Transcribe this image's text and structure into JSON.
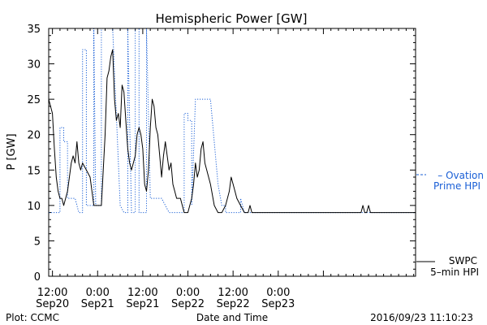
{
  "chart_data": {
    "type": "line",
    "title": "Hemispheric Power [GW]",
    "ylabel": "P [GW]",
    "xlabel": "Date and Time",
    "ylim": [
      0,
      35
    ],
    "xlim": [
      -1.0,
      96.5
    ],
    "y_ticks": [
      0,
      5,
      10,
      15,
      20,
      25,
      30,
      35
    ],
    "x_tick_hours": [
      0,
      12,
      24,
      36,
      48,
      60,
      72
    ],
    "x_tick_labels": [
      {
        "time": "12:00",
        "date": "Sep20"
      },
      {
        "time": "0:00",
        "date": "Sep21"
      },
      {
        "time": "12:00",
        "date": "Sep21"
      },
      {
        "time": "0:00",
        "date": "Sep22"
      },
      {
        "time": "12:00",
        "date": "Sep22"
      },
      {
        "time": "0:00",
        "date": "Sep23"
      }
    ],
    "legend": [
      {
        "line1": "– Ovation",
        "line2": "Prime HPI",
        "color": "#1a5fd6",
        "style": "dashed"
      },
      {
        "line1": "SWPC",
        "line2": "5–min HPI",
        "color": "#000000",
        "style": "solid"
      }
    ],
    "series": [
      {
        "color": "#1a5fd6",
        "style": "dotted",
        "points": [
          [
            -1,
            9
          ],
          [
            2,
            9
          ],
          [
            2,
            21
          ],
          [
            3,
            21
          ],
          [
            3,
            19
          ],
          [
            4,
            19
          ],
          [
            4,
            11
          ],
          [
            6,
            11
          ],
          [
            6,
            11
          ],
          [
            7,
            9
          ],
          [
            8,
            9
          ],
          [
            8,
            32
          ],
          [
            9,
            32
          ],
          [
            9,
            10
          ],
          [
            11,
            10
          ],
          [
            11,
            35
          ],
          [
            11.5,
            10
          ],
          [
            13,
            10
          ],
          [
            13,
            35
          ],
          [
            16,
            35
          ],
          [
            16,
            35
          ],
          [
            18,
            10
          ],
          [
            19,
            9
          ],
          [
            20,
            9
          ],
          [
            20,
            35
          ],
          [
            21,
            9
          ],
          [
            22,
            9
          ],
          [
            22,
            35
          ],
          [
            23,
            35
          ],
          [
            23,
            9
          ],
          [
            25,
            9
          ],
          [
            25,
            35
          ],
          [
            26,
            11
          ],
          [
            29,
            11
          ],
          [
            31,
            9
          ],
          [
            35,
            9
          ],
          [
            35,
            23
          ],
          [
            36,
            23
          ],
          [
            36,
            22
          ],
          [
            37,
            22
          ],
          [
            37,
            10
          ],
          [
            38,
            25
          ],
          [
            42,
            25
          ],
          [
            44,
            13
          ],
          [
            45,
            10
          ],
          [
            46,
            10
          ],
          [
            46,
            9
          ],
          [
            50,
            9
          ],
          [
            50,
            11
          ],
          [
            51,
            9
          ],
          [
            96.5,
            9
          ]
        ]
      },
      {
        "color": "#000000",
        "style": "solid",
        "points": [
          [
            -1,
            25
          ],
          [
            0,
            23
          ],
          [
            0.5,
            18
          ],
          [
            1,
            14
          ],
          [
            1.5,
            12
          ],
          [
            2,
            11
          ],
          [
            2.5,
            11
          ],
          [
            3,
            10
          ],
          [
            4,
            12
          ],
          [
            5,
            16
          ],
          [
            5.5,
            17
          ],
          [
            6,
            16
          ],
          [
            6.5,
            19
          ],
          [
            7,
            16
          ],
          [
            7.5,
            15
          ],
          [
            8,
            16
          ],
          [
            9,
            15
          ],
          [
            10,
            14
          ],
          [
            10.5,
            12
          ],
          [
            11,
            10
          ],
          [
            12,
            10
          ],
          [
            13,
            10
          ],
          [
            14,
            20
          ],
          [
            14.5,
            28
          ],
          [
            15,
            29
          ],
          [
            15.5,
            31
          ],
          [
            16,
            32
          ],
          [
            16.5,
            25
          ],
          [
            17,
            22
          ],
          [
            17.5,
            23
          ],
          [
            18,
            21
          ],
          [
            18.5,
            27
          ],
          [
            19,
            26
          ],
          [
            19.5,
            22
          ],
          [
            20,
            18
          ],
          [
            20.5,
            16
          ],
          [
            21,
            15
          ],
          [
            22,
            17
          ],
          [
            22.5,
            20
          ],
          [
            23,
            21
          ],
          [
            23.5,
            20
          ],
          [
            24,
            18
          ],
          [
            24.5,
            13
          ],
          [
            25,
            12
          ],
          [
            25.5,
            15
          ],
          [
            26,
            21
          ],
          [
            26.5,
            25
          ],
          [
            27,
            24
          ],
          [
            27.5,
            21
          ],
          [
            28,
            20
          ],
          [
            28.5,
            17
          ],
          [
            29,
            14
          ],
          [
            29.5,
            17
          ],
          [
            30,
            19
          ],
          [
            30.5,
            17
          ],
          [
            31,
            15
          ],
          [
            31.5,
            16
          ],
          [
            32,
            13
          ],
          [
            32.5,
            12
          ],
          [
            33,
            11
          ],
          [
            34,
            11
          ],
          [
            34.5,
            10
          ],
          [
            35,
            9
          ],
          [
            36,
            9
          ],
          [
            36.5,
            10
          ],
          [
            37,
            11
          ],
          [
            37.5,
            13
          ],
          [
            38,
            16
          ],
          [
            38.5,
            14
          ],
          [
            39,
            15
          ],
          [
            39.5,
            18
          ],
          [
            40,
            19
          ],
          [
            40.5,
            16
          ],
          [
            41,
            15
          ],
          [
            42,
            13
          ],
          [
            43,
            10
          ],
          [
            44,
            9
          ],
          [
            45,
            9
          ],
          [
            46,
            10
          ],
          [
            47,
            12
          ],
          [
            47.5,
            14
          ],
          [
            48,
            13
          ],
          [
            48.5,
            12
          ],
          [
            49,
            11
          ],
          [
            50,
            10
          ],
          [
            51,
            9
          ],
          [
            52,
            9
          ],
          [
            52.5,
            10
          ],
          [
            53,
            9
          ],
          [
            82,
            9
          ],
          [
            82.5,
            10
          ],
          [
            83,
            9
          ],
          [
            83.5,
            9
          ],
          [
            84,
            10
          ],
          [
            84.5,
            9
          ],
          [
            96.5,
            9
          ]
        ]
      }
    ]
  },
  "footer": {
    "left": "Plot: CCMC",
    "right": "2016/09/23 11:10:23"
  }
}
